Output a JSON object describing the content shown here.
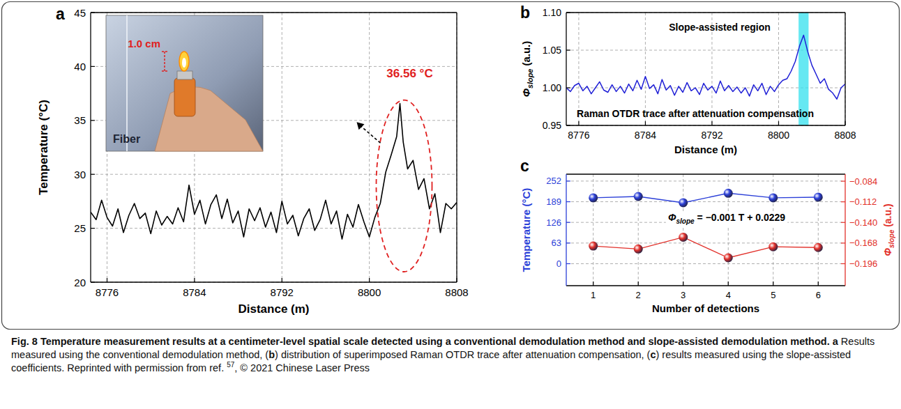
{
  "chart_data": [
    {
      "type": "line",
      "panel_label": "a",
      "xlabel": "Distance (m)",
      "ylabel": "Temperature (°C)",
      "x": [
        8774.5,
        8775,
        8775.5,
        8776,
        8776.5,
        8777,
        8777.5,
        8778,
        8778.5,
        8779,
        8779.5,
        8780,
        8780.5,
        8781,
        8781.5,
        8782,
        8782.5,
        8783,
        8783.5,
        8784,
        8784.5,
        8785,
        8785.5,
        8786,
        8786.5,
        8787,
        8787.5,
        8788,
        8788.5,
        8789,
        8789.5,
        8790,
        8790.5,
        8791,
        8791.5,
        8792,
        8792.5,
        8793,
        8793.5,
        8794,
        8794.5,
        8795,
        8795.5,
        8796,
        8796.5,
        8797,
        8797.5,
        8798,
        8798.5,
        8799,
        8799.5,
        8800,
        8800.5,
        8801,
        8801.5,
        8802,
        8802.5,
        8802.8,
        8803.1,
        8803.5,
        8804,
        8804.5,
        8805,
        8805.5,
        8806,
        8806.5,
        8807,
        8807.5,
        8808
      ],
      "values": [
        26.5,
        25.8,
        27.6,
        26.0,
        25.2,
        26.8,
        24.6,
        26.2,
        27.3,
        25.9,
        26.4,
        24.5,
        26.6,
        25.3,
        26.1,
        25.4,
        26.9,
        25.6,
        29.0,
        26.3,
        27.6,
        25.4,
        27.2,
        28.1,
        25.9,
        27.7,
        25.5,
        26.6,
        24.2,
        26.8,
        25.7,
        26.9,
        25.1,
        26.5,
        24.6,
        27.5,
        25.4,
        26.2,
        24.3,
        25.9,
        26.8,
        24.8,
        25.8,
        27.6,
        25.4,
        26.6,
        24.0,
        26.3,
        25.1,
        27.2,
        25.6,
        24.2,
        26.0,
        27.3,
        30.2,
        31.8,
        33.5,
        36.56,
        33.0,
        30.5,
        31.3,
        28.6,
        29.6,
        26.8,
        28.2,
        24.6,
        27.3,
        26.8,
        27.4
      ],
      "color": "#000000",
      "xlim": [
        8774.5,
        8808
      ],
      "xticks": [
        8776,
        8784,
        8792,
        8800,
        8808
      ],
      "ylim": [
        20,
        45
      ],
      "yticks": [
        20,
        25,
        30,
        35,
        40,
        45
      ],
      "grid": true,
      "annotation": "36.56 °C",
      "inset": {
        "scale_label": "1.0 cm",
        "fiber_label": "Fiber"
      }
    },
    {
      "type": "line",
      "panel_label": "b",
      "xlabel": "Distance (m)",
      "ylabel": {
        "symbol": "Φ",
        "subscript": "slope",
        "rest": " (a.u.)"
      },
      "x": [
        8774.5,
        8775,
        8775.5,
        8776,
        8776.5,
        8777,
        8777.5,
        8778,
        8778.5,
        8779,
        8779.5,
        8780,
        8780.5,
        8781,
        8781.5,
        8782,
        8782.5,
        8783,
        8783.5,
        8784,
        8784.5,
        8785,
        8785.5,
        8786,
        8786.5,
        8787,
        8787.5,
        8788,
        8788.5,
        8789,
        8789.5,
        8790,
        8790.5,
        8791,
        8791.5,
        8792,
        8792.5,
        8793,
        8793.5,
        8794,
        8794.5,
        8795,
        8795.5,
        8796,
        8796.5,
        8797,
        8797.5,
        8798,
        8798.5,
        8799,
        8799.5,
        8800,
        8800.5,
        8801,
        8801.5,
        8802,
        8802.5,
        8803,
        8803.5,
        8804,
        8804.5,
        8805,
        8805.5,
        8806,
        8806.5,
        8807,
        8807.5,
        8808
      ],
      "values": [
        1.0,
        0.995,
        1.003,
        1.006,
        0.996,
        1.002,
        0.992,
        1.0,
        1.008,
        0.997,
        0.994,
        1.004,
        0.995,
        1.002,
        0.993,
        1.005,
        0.996,
        1.01,
        0.998,
        1.015,
        0.999,
        1.004,
        0.992,
        1.011,
        0.997,
        1.003,
        0.99,
        1.002,
        0.994,
        1.007,
        0.996,
        1.0,
        0.991,
        1.006,
        0.997,
        1.002,
        0.993,
        1.009,
        0.996,
        1.003,
        0.995,
        1.001,
        0.993,
        1.0,
        0.989,
        1.004,
        0.996,
        1.006,
        0.991,
        1.002,
        0.995,
        1.004,
        1.01,
        1.012,
        1.022,
        1.035,
        1.055,
        1.07,
        1.048,
        1.03,
        1.018,
        1.006,
        1.012,
        0.998,
        0.993,
        0.985,
        1.0,
        1.005
      ],
      "color": "#1f1fd6",
      "xlim": [
        8774.5,
        8808
      ],
      "xticks": [
        8776,
        8784,
        8792,
        8800,
        8808
      ],
      "ylim": [
        0.95,
        1.1
      ],
      "yticks": [
        0.95,
        {
          "value": 1,
          "label": "1.00"
        },
        1.05,
        {
          "value": 1.1,
          "label": "1.10"
        }
      ],
      "grid": true,
      "region": [
        8802.4,
        8803.6
      ],
      "annotations": [
        "Slope-assisted region",
        "Raman OTDR trace after attenuation compensation"
      ]
    },
    {
      "type": "line",
      "panel_label": "c",
      "xlabel": "Number of detections",
      "ylabel": "Temperature (°C)",
      "y2label": {
        "symbol": "Φ",
        "subscript": "slope",
        "rest": " (a.u.)"
      },
      "x": [
        1,
        2,
        3,
        4,
        5,
        6
      ],
      "xlim": [
        0.4,
        6.6
      ],
      "xticks": [
        1,
        2,
        3,
        4,
        5,
        6
      ],
      "ylim": [
        -67,
        273
      ],
      "yticks": [
        0,
        63,
        126,
        189,
        252
      ],
      "y2lim": [
        -0.2258,
        -0.0745
      ],
      "y2ticks": [
        {
          "value": -0.196,
          "label": "−0.196"
        },
        {
          "value": -0.168,
          "label": "−0.168"
        },
        {
          "value": -0.14,
          "label": "−0.140"
        },
        {
          "value": -0.112,
          "label": "−0.112"
        },
        {
          "value": -0.084,
          "label": "−0.084"
        }
      ],
      "grid": true,
      "series": [
        {
          "color": "#2b3fd8",
          "marker": "circle",
          "values": [
            201,
            205,
            186,
            215,
            201,
            203
          ]
        },
        {
          "color": "#e2302a",
          "marker": "circle",
          "axis": "y2",
          "values": [
            -0.172,
            -0.176,
            -0.16,
            -0.188,
            -0.173,
            -0.174
          ]
        }
      ],
      "annotation": {
        "symbol": "Φ",
        "subscript": "slope",
        "rest": " = −0.001 T + 0.0229"
      }
    }
  ],
  "caption": [
    {
      "text": "Fig. 8 Temperature measurement results at a centimeter-level spatial scale detected using a conventional demodulation method and slope-assisted demodulation method. ",
      "bold": true
    },
    {
      "text": "a",
      "bold": true
    },
    {
      "text": " Results measured using the conventional demodulation method, ("
    },
    {
      "text": "b",
      "bold": true
    },
    {
      "text": ") distribution of superimposed Raman OTDR trace after attenuation compensation, ("
    },
    {
      "text": "c",
      "bold": true
    },
    {
      "text": ") results measured using the slope-assisted coefficients. Reprinted with permission from ref. "
    },
    {
      "text": "57",
      "sup": true
    },
    {
      "text": ", © 2021 Chinese Laser Press"
    }
  ]
}
